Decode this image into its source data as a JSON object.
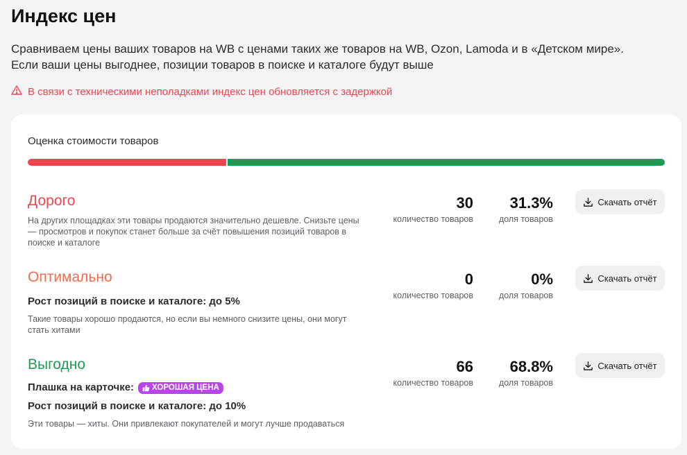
{
  "page": {
    "title": "Индекс цен",
    "subtitle_line1": "Сравниваем цены ваших товаров на WB с ценами таких же товаров на WB, Ozon, Lamoda и в «Детском мире».",
    "subtitle_line2": "Если ваши цены выгоднее, позиции товаров в поиске и каталоге будут выше",
    "warning": "В связи с техническими неполадками индекс цен обновляется с задержкой"
  },
  "card": {
    "heading": "Оценка стоимости товаров",
    "bar": {
      "red_share": 31.3,
      "green_share": 68.8,
      "red_color": "#f4444e",
      "green_color": "#1d9a56"
    }
  },
  "rows": [
    {
      "title": "Дорого",
      "description": "На других площадках эти товары продаются значительно дешевле. Снизьте цены — просмотров и покупок станет больше за счёт повышения позиций товаров в поиске и каталоге",
      "count": "30",
      "count_label": "количество товаров",
      "share": "31.3%",
      "share_label": "доля товаров",
      "button": "Скачать отчёт"
    },
    {
      "title": "Оптимально",
      "growth": "Рост позиций в поиске и каталоге: до 5%",
      "description": "Такие товары хорошо продаются, но если вы немного снизите цены, они могут стать хитами",
      "count": "0",
      "count_label": "количество товаров",
      "share": "0%",
      "share_label": "доля товаров",
      "button": "Скачать отчёт"
    },
    {
      "title": "Выгодно",
      "badge_label": "Плашка на карточке:",
      "badge_text": "ХОРОШАЯ ЦЕНА",
      "growth": "Рост позиций в поиске и каталоге: до 10%",
      "description": "Эти товары — хиты. Они привлекают покупателей и могут лучше продаваться",
      "count": "66",
      "count_label": "количество товаров",
      "share": "68.8%",
      "share_label": "доля товаров",
      "button": "Скачать отчёт"
    }
  ]
}
